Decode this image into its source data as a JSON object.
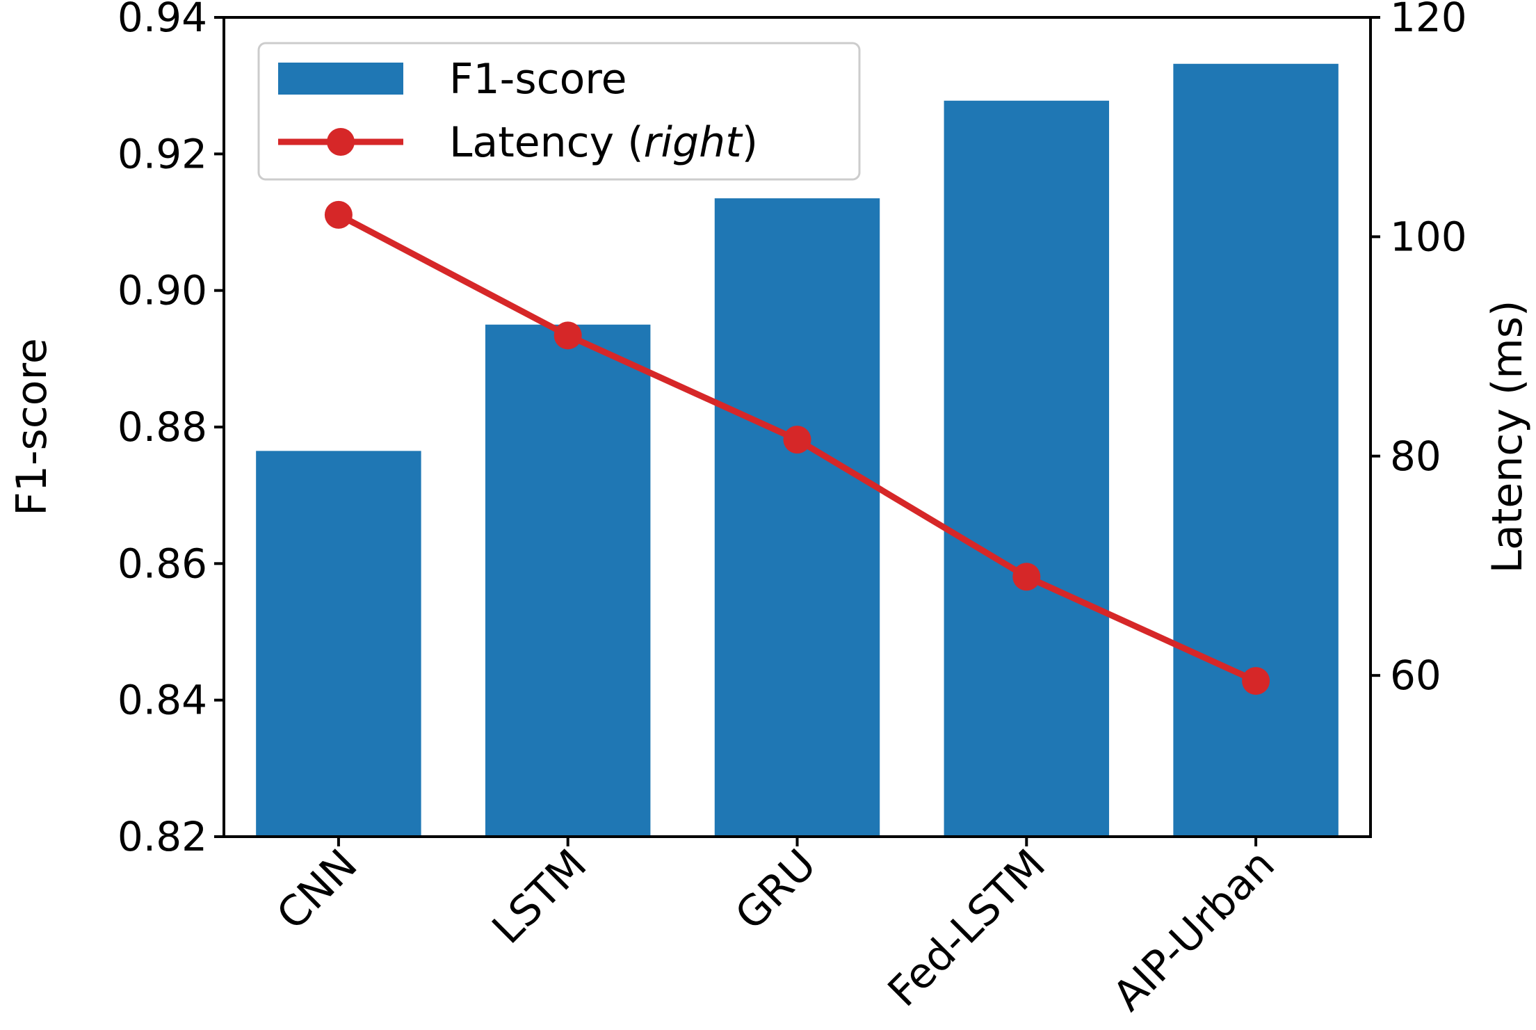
{
  "chart_data": {
    "type": "bar",
    "categories": [
      "CNN",
      "LSTM",
      "GRU",
      "Fed-LSTM",
      "AIP-Urban"
    ],
    "series": [
      {
        "name": "F1-score",
        "type": "bar",
        "axis": "left",
        "color": "#1f77b4",
        "values": [
          0.8765,
          0.895,
          0.9135,
          0.9278,
          0.9332
        ]
      },
      {
        "name": "Latency",
        "legend_suffix": "right",
        "type": "line",
        "axis": "right",
        "color": "#d62728",
        "values": [
          102,
          91,
          81.5,
          69,
          59.5
        ]
      }
    ],
    "ylabel_left": "F1-score",
    "ylabel_right": "Latency (ms)",
    "ylim_left": [
      0.82,
      0.94
    ],
    "ylim_right": [
      45.3,
      120
    ],
    "yticks_left": [
      "0.82",
      "0.84",
      "0.86",
      "0.88",
      "0.90",
      "0.92",
      "0.94"
    ],
    "yticks_right": [
      "60",
      "80",
      "100",
      "120"
    ],
    "legend_position": "top-left",
    "grid": false
  }
}
